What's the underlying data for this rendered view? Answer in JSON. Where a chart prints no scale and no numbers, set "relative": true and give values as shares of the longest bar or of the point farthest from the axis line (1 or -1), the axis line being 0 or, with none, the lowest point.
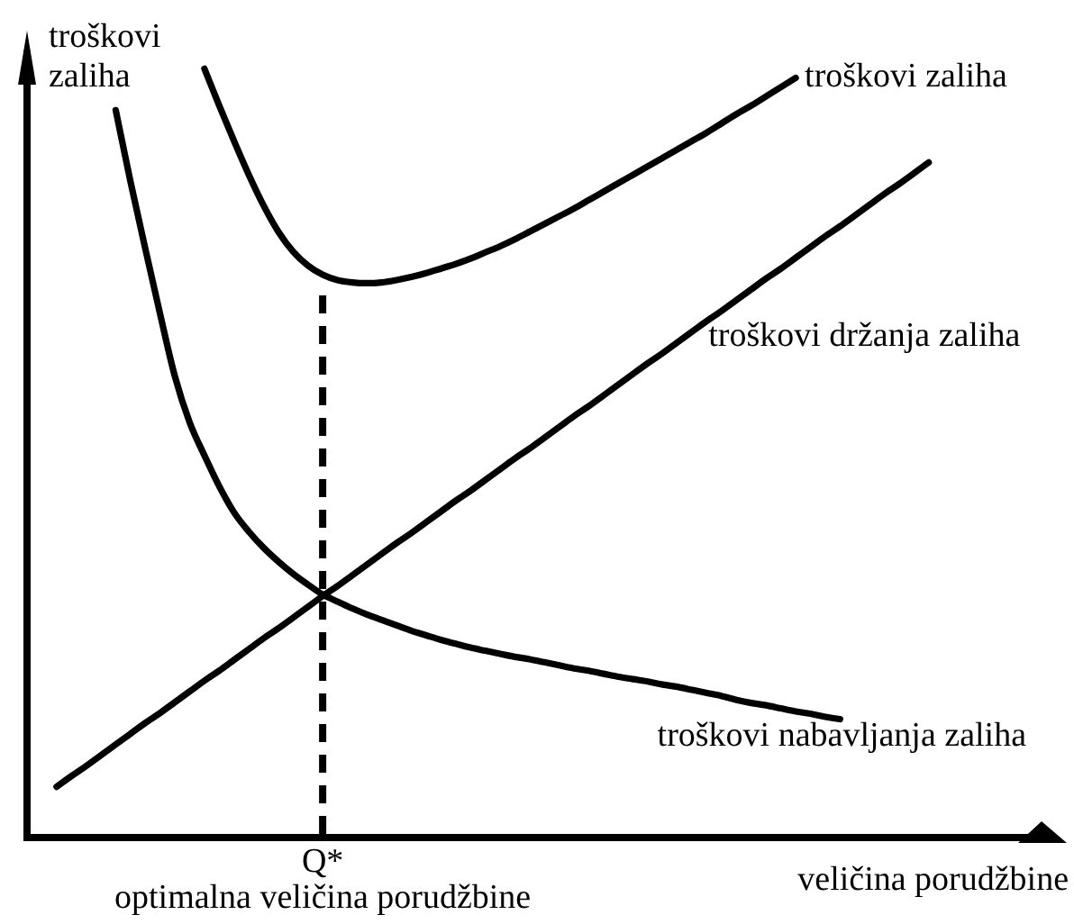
{
  "chart_data": {
    "type": "line",
    "relative": true,
    "xlabel": "veličina porudžbine",
    "ylabel": "troškovi zaliha",
    "categories": [
      null,
      null,
      null,
      null,
      null,
      null,
      null,
      null,
      null,
      null,
      null,
      null,
      null,
      null,
      null,
      null,
      null,
      null,
      null,
      null,
      null,
      null,
      null,
      null,
      null,
      null,
      null,
      null,
      null,
      null,
      null,
      null,
      null,
      null,
      null,
      null,
      null,
      null,
      null,
      null,
      null,
      null,
      null,
      null,
      null,
      null,
      null,
      null,
      null,
      null,
      null,
      null,
      null,
      null,
      null,
      null,
      null,
      null,
      null,
      null,
      null,
      null,
      null,
      null,
      null,
      null,
      null,
      null,
      null,
      null
    ],
    "series": [
      {
        "name": "troškovi zaliha",
        "color": "#000000",
        "values": [
          null,
          null,
          null,
          null,
          null,
          null,
          null,
          null,
          null,
          null,
          null,
          null,
          1,
          0.952,
          0.906,
          0.862,
          0.822,
          0.788,
          0.762,
          0.744,
          0.732,
          0.725,
          0.722,
          0.721,
          0.722,
          0.725,
          0.729,
          0.734,
          0.74,
          0.746,
          0.753,
          0.761,
          0.769,
          0.778,
          0.788,
          0.798,
          0.808,
          0.818,
          0.829,
          0.84,
          0.851,
          0.862,
          0.873,
          0.884,
          0.895,
          0.906,
          0.917,
          0.929,
          0.941,
          0.952,
          0.964,
          0.976,
          0.988,
          null,
          null,
          null,
          null,
          null,
          null,
          null,
          null,
          null,
          null,
          null,
          null,
          null,
          null,
          null,
          null,
          null
        ]
      },
      {
        "name": "troškovi držanja zaliha",
        "color": "#000000",
        "values": [
          null,
          null,
          0.066,
          0.08,
          0.093,
          0.107,
          0.121,
          0.135,
          0.149,
          0.162,
          0.176,
          0.19,
          0.204,
          0.217,
          0.231,
          0.245,
          0.259,
          0.272,
          0.286,
          0.3,
          0.314,
          0.327,
          0.341,
          0.355,
          0.369,
          0.383,
          0.396,
          0.41,
          0.424,
          0.438,
          0.451,
          0.465,
          0.479,
          0.493,
          0.506,
          0.52,
          0.534,
          0.548,
          0.561,
          0.575,
          0.589,
          0.603,
          0.617,
          0.63,
          0.644,
          0.658,
          0.672,
          0.685,
          0.699,
          0.713,
          0.727,
          0.74,
          0.754,
          0.768,
          0.782,
          0.795,
          0.809,
          0.823,
          0.837,
          0.85,
          0.864,
          0.878,
          null,
          null,
          null,
          null,
          null,
          null,
          null,
          null
        ]
      },
      {
        "name": "troškovi nabavljanja zaliha",
        "color": "#000000",
        "values": [
          null,
          null,
          null,
          null,
          null,
          null,
          0.946,
          0.853,
          0.766,
          0.681,
          0.6,
          0.54,
          0.497,
          0.457,
          0.423,
          0.398,
          0.377,
          0.359,
          0.343,
          0.329,
          0.316,
          0.307,
          0.298,
          0.29,
          0.283,
          0.276,
          0.269,
          0.263,
          0.257,
          0.252,
          0.247,
          0.243,
          0.239,
          0.235,
          0.232,
          0.228,
          0.224,
          0.22,
          0.217,
          0.213,
          0.209,
          0.206,
          0.203,
          0.199,
          0.196,
          0.192,
          0.188,
          0.184,
          0.179,
          0.175,
          0.172,
          0.168,
          0.164,
          0.161,
          0.157,
          0.154,
          null,
          null,
          null,
          null,
          null,
          null,
          null,
          null,
          null,
          null,
          null,
          null,
          null,
          null
        ]
      }
    ],
    "ref_lines": [
      {
        "axis": "x",
        "value": "Q*",
        "label": "optimalna veličina porudžbine",
        "color": "#000000",
        "line_style": "dashed"
      }
    ]
  }
}
